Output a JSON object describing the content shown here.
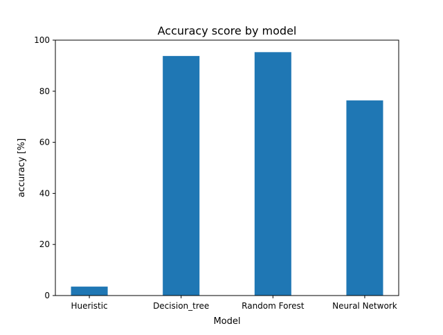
{
  "chart_data": {
    "type": "bar",
    "title": "Accuracy score by model",
    "xlabel": "Model",
    "ylabel": "accuracy [%]",
    "categories": [
      "Hueristic",
      "Decision_tree",
      "Random Forest",
      "Neural Network"
    ],
    "values": [
      3.5,
      93.8,
      95.3,
      76.4
    ],
    "ylim": [
      0,
      100
    ],
    "yticks": [
      0,
      20,
      40,
      60,
      80,
      100
    ],
    "grid": false,
    "bar_color": "#1f77b4"
  }
}
